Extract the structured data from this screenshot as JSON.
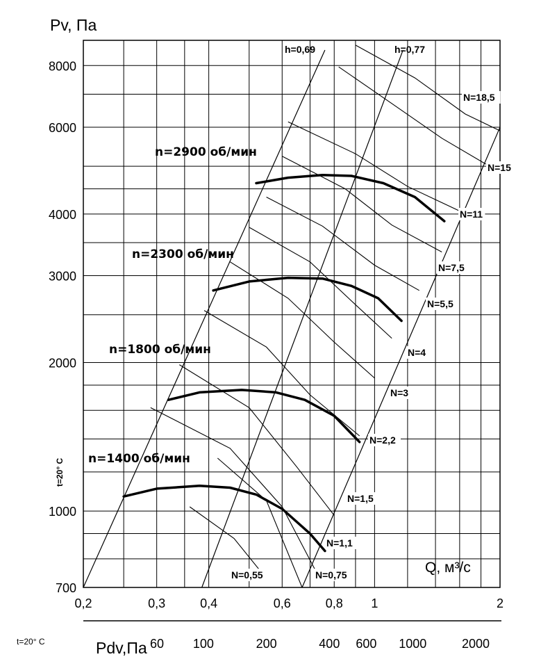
{
  "chart_data": {
    "type": "line",
    "title": "",
    "ylabel": "Pv, Па",
    "xlabel": "Q, м³/с",
    "x_scale": "log",
    "y_scale": "log",
    "xlim": [
      0.2,
      2
    ],
    "ylim": [
      700,
      9000
    ],
    "x_ticks": [
      {
        "value": 0.2,
        "label": "0,2"
      },
      {
        "value": 0.3,
        "label": "0,3"
      },
      {
        "value": 0.4,
        "label": "0,4"
      },
      {
        "value": 0.6,
        "label": "0,6"
      },
      {
        "value": 0.8,
        "label": "0,8"
      },
      {
        "value": 1,
        "label": "1"
      },
      {
        "value": 2,
        "label": "2"
      }
    ],
    "y_ticks": [
      {
        "value": 700,
        "label": "700"
      },
      {
        "value": 1000,
        "label": "1000"
      },
      {
        "value": 2000,
        "label": "2000"
      },
      {
        "value": 3000,
        "label": "3000"
      },
      {
        "value": 4000,
        "label": "4000"
      },
      {
        "value": 6000,
        "label": "6000"
      },
      {
        "value": 8000,
        "label": "8000"
      }
    ],
    "temperature_label": "t=20° C",
    "secondary_axis": {
      "label": "Pdv,Па",
      "temperature_label": "t=20° C",
      "ticks": [
        {
          "value": 60,
          "label": "60"
        },
        {
          "value": 100,
          "label": "100"
        },
        {
          "value": 200,
          "label": "200"
        },
        {
          "value": 400,
          "label": "400"
        },
        {
          "value": 600,
          "label": "600"
        },
        {
          "value": 1000,
          "label": "1000"
        },
        {
          "value": 2000,
          "label": "2000"
        }
      ]
    },
    "series": [
      {
        "name": "n=1400 об/мин",
        "x": [
          0.25,
          0.3,
          0.38,
          0.45,
          0.52,
          0.6,
          0.7,
          0.76
        ],
        "y": [
          1070,
          1110,
          1125,
          1115,
          1080,
          1010,
          900,
          830
        ]
      },
      {
        "name": "n=1800 об/мин",
        "x": [
          0.32,
          0.38,
          0.48,
          0.58,
          0.68,
          0.8,
          0.92
        ],
        "y": [
          1680,
          1740,
          1760,
          1740,
          1680,
          1560,
          1380
        ]
      },
      {
        "name": "n=2300 об/мин",
        "x": [
          0.41,
          0.5,
          0.62,
          0.75,
          0.88,
          1.02,
          1.16
        ],
        "y": [
          2800,
          2920,
          2970,
          2960,
          2860,
          2700,
          2430
        ]
      },
      {
        "name": "n=2900 об/мин",
        "x": [
          0.52,
          0.62,
          0.75,
          0.88,
          1.05,
          1.25,
          1.47
        ],
        "y": [
          4620,
          4740,
          4800,
          4780,
          4620,
          4330,
          3870
        ]
      }
    ],
    "efficiency_labels": [
      "h=0,69",
      "h=0,77"
    ],
    "power_labels": [
      "N=0,55",
      "N=0,75",
      "N=1,1",
      "N=1,5",
      "N=2,2",
      "N=3",
      "N=4",
      "N=5,5",
      "N=7,5",
      "N=11",
      "N=15",
      "N=18,5"
    ]
  }
}
